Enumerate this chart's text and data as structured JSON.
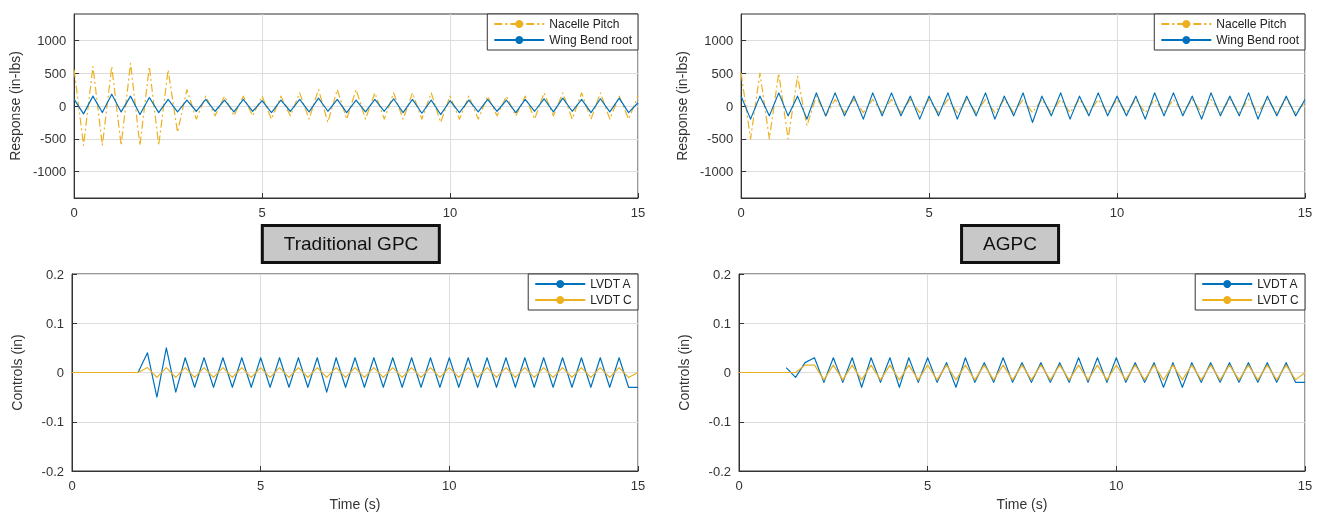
{
  "chart_data": [
    {
      "type": "line",
      "ylabel": "Response (in-lbs)",
      "annotations": [
        "Traditional GPC"
      ],
      "x": [
        0,
        0.25,
        0.5,
        0.75,
        1,
        1.25,
        1.5,
        1.75,
        2,
        2.25,
        2.5,
        2.75,
        3,
        3.25,
        3.5,
        3.75,
        4,
        4.25,
        4.5,
        4.75,
        5,
        5.25,
        5.5,
        5.75,
        6,
        6.25,
        6.5,
        6.75,
        7,
        7.25,
        7.5,
        7.75,
        8,
        8.25,
        8.5,
        8.75,
        9,
        9.25,
        9.5,
        9.75,
        10,
        10.25,
        10.5,
        10.75,
        11,
        11.25,
        11.5,
        11.75,
        12,
        12.25,
        12.5,
        12.75,
        13,
        13.25,
        13.5,
        13.75,
        14,
        14.25,
        14.5,
        14.75,
        15
      ],
      "xlim": [
        0,
        15
      ],
      "xticks": [
        0,
        5,
        10,
        15
      ],
      "ylim": [
        -1400,
        1400
      ],
      "yticks": [
        -1000,
        -500,
        0,
        500,
        1000
      ],
      "grid": true,
      "legend": "top right",
      "marker": "none",
      "series": [
        {
          "name": "Nacelle Pitch",
          "color": "#edb120",
          "line_style": "dashed",
          "values": [
            550,
            -600,
            600,
            -600,
            600,
            -600,
            650,
            -600,
            600,
            -600,
            550,
            -400,
            250,
            -200,
            150,
            -150,
            150,
            -150,
            150,
            -150,
            150,
            -200,
            150,
            -150,
            200,
            -200,
            250,
            -250,
            250,
            -200,
            250,
            -200,
            200,
            -200,
            200,
            -200,
            200,
            -200,
            200,
            -250,
            150,
            -200,
            150,
            -200,
            150,
            -150,
            150,
            -150,
            150,
            -200,
            200,
            -150,
            200,
            -200,
            200,
            -200,
            200,
            -200,
            150,
            -200,
            150
          ]
        },
        {
          "name": "Wing Bend root",
          "color": "#0072bd",
          "line_style": "solid",
          "values": [
            100,
            -120,
            150,
            -100,
            180,
            -90,
            150,
            -130,
            130,
            -100,
            100,
            -90,
            90,
            -80,
            100,
            -80,
            90,
            -90,
            100,
            -80,
            80,
            -100,
            90,
            -80,
            100,
            -90,
            120,
            -80,
            100,
            -100,
            90,
            -90,
            100,
            -80,
            110,
            -100,
            100,
            -110,
            90,
            -130,
            80,
            -100,
            90,
            -90,
            100,
            -80,
            90,
            -100,
            100,
            -80,
            110,
            -90,
            120,
            -80,
            100,
            -100,
            110,
            -90,
            120,
            -100,
            50
          ]
        }
      ]
    },
    {
      "type": "line",
      "ylabel": "Response (in-lbs)",
      "annotations": [
        "AGPC"
      ],
      "x": [
        0,
        0.25,
        0.5,
        0.75,
        1,
        1.25,
        1.5,
        1.75,
        2,
        2.25,
        2.5,
        2.75,
        3,
        3.25,
        3.5,
        3.75,
        4,
        4.25,
        4.5,
        4.75,
        5,
        5.25,
        5.5,
        5.75,
        6,
        6.25,
        6.5,
        6.75,
        7,
        7.25,
        7.5,
        7.75,
        8,
        8.25,
        8.5,
        8.75,
        9,
        9.25,
        9.5,
        9.75,
        10,
        10.25,
        10.5,
        10.75,
        11,
        11.25,
        11.5,
        11.75,
        12,
        12.25,
        12.5,
        12.75,
        13,
        13.25,
        13.5,
        13.75,
        14,
        14.25,
        14.5,
        14.75,
        15
      ],
      "xlim": [
        0,
        15
      ],
      "xticks": [
        0,
        5,
        10,
        15
      ],
      "ylim": [
        -1400,
        1400
      ],
      "yticks": [
        -1000,
        -500,
        0,
        500,
        1000
      ],
      "grid": true,
      "legend": "top right",
      "marker": "none",
      "series": [
        {
          "name": "Nacelle Pitch",
          "color": "#edb120",
          "line_style": "dashed",
          "values": [
            500,
            -500,
            500,
            -500,
            500,
            -500,
            450,
            -300,
            150,
            -150,
            100,
            -100,
            100,
            -100,
            100,
            -100,
            100,
            -100,
            100,
            -100,
            100,
            -100,
            100,
            -100,
            100,
            -100,
            100,
            -100,
            100,
            -100,
            100,
            -100,
            100,
            -100,
            100,
            -100,
            100,
            -100,
            100,
            -100,
            100,
            -100,
            100,
            -100,
            100,
            -100,
            100,
            -100,
            100,
            -100,
            100,
            -100,
            100,
            -100,
            100,
            -100,
            100,
            -100,
            100,
            -100,
            50
          ]
        },
        {
          "name": "Wing Bend root",
          "color": "#0072bd",
          "line_style": "solid",
          "values": [
            150,
            -200,
            150,
            -150,
            200,
            -150,
            150,
            -200,
            200,
            -150,
            200,
            -150,
            150,
            -200,
            200,
            -150,
            200,
            -150,
            150,
            -200,
            150,
            -150,
            200,
            -200,
            150,
            -150,
            200,
            -200,
            150,
            -150,
            200,
            -250,
            150,
            -150,
            200,
            -200,
            150,
            -150,
            200,
            -150,
            150,
            -150,
            150,
            -200,
            200,
            -150,
            200,
            -150,
            150,
            -200,
            200,
            -150,
            150,
            -150,
            200,
            -200,
            150,
            -150,
            150,
            -150,
            100
          ]
        }
      ]
    },
    {
      "type": "line",
      "xlabel": "Time (s)",
      "ylabel": "Controls (in)",
      "x": [
        0,
        0.25,
        0.5,
        0.75,
        1,
        1.25,
        1.5,
        1.75,
        2,
        2.25,
        2.5,
        2.75,
        3,
        3.25,
        3.5,
        3.75,
        4,
        4.25,
        4.5,
        4.75,
        5,
        5.25,
        5.5,
        5.75,
        6,
        6.25,
        6.5,
        6.75,
        7,
        7.25,
        7.5,
        7.75,
        8,
        8.25,
        8.5,
        8.75,
        9,
        9.25,
        9.5,
        9.75,
        10,
        10.25,
        10.5,
        10.75,
        11,
        11.25,
        11.5,
        11.75,
        12,
        12.25,
        12.5,
        12.75,
        13,
        13.25,
        13.5,
        13.75,
        14,
        14.25,
        14.5,
        14.75,
        15
      ],
      "xlim": [
        0,
        15
      ],
      "xticks": [
        0,
        5,
        10,
        15
      ],
      "ylim": [
        -0.2,
        0.2
      ],
      "yticks": [
        -0.2,
        -0.1,
        0,
        0.1,
        0.2
      ],
      "grid": true,
      "legend": "top right",
      "marker": "none",
      "series": [
        {
          "name": "LVDT A",
          "color": "#0072bd",
          "line_style": "solid",
          "values": [
            null,
            null,
            null,
            null,
            null,
            null,
            null,
            0,
            0.04,
            -0.05,
            0.05,
            -0.04,
            0.03,
            -0.03,
            0.03,
            -0.03,
            0.03,
            -0.03,
            0.03,
            -0.03,
            0.03,
            -0.03,
            0.03,
            -0.03,
            0.03,
            -0.03,
            0.03,
            -0.04,
            0.03,
            -0.03,
            0.03,
            -0.03,
            0.03,
            -0.03,
            0.03,
            -0.03,
            0.03,
            -0.03,
            0.03,
            -0.03,
            0.03,
            -0.03,
            0.03,
            -0.03,
            0.03,
            -0.03,
            0.03,
            -0.03,
            0.03,
            -0.03,
            0.03,
            -0.03,
            0.03,
            -0.03,
            0.03,
            -0.03,
            0.03,
            -0.03,
            0.03,
            -0.03,
            -0.03
          ]
        },
        {
          "name": "LVDT C",
          "color": "#edb120",
          "line_style": "solid",
          "values": [
            0,
            0,
            0,
            0,
            0,
            0,
            0,
            0,
            0.01,
            -0.01,
            0.01,
            -0.01,
            0.01,
            -0.01,
            0.01,
            -0.01,
            0.01,
            -0.01,
            0.01,
            -0.01,
            0.01,
            -0.01,
            0.01,
            -0.01,
            0.01,
            -0.01,
            0.01,
            -0.01,
            0.01,
            -0.01,
            0.01,
            -0.01,
            0.01,
            -0.01,
            0.01,
            -0.01,
            0.01,
            -0.01,
            0.01,
            -0.01,
            0.01,
            -0.01,
            0.01,
            -0.01,
            0.01,
            -0.01,
            0.01,
            -0.01,
            0.01,
            -0.01,
            0.01,
            -0.01,
            0.01,
            -0.01,
            0.01,
            -0.01,
            0.01,
            -0.01,
            0.01,
            -0.01,
            0
          ]
        }
      ]
    },
    {
      "type": "line",
      "xlabel": "Time (s)",
      "ylabel": "Controls (in)",
      "x": [
        0,
        0.25,
        0.5,
        0.75,
        1,
        1.25,
        1.5,
        1.75,
        2,
        2.25,
        2.5,
        2.75,
        3,
        3.25,
        3.5,
        3.75,
        4,
        4.25,
        4.5,
        4.75,
        5,
        5.25,
        5.5,
        5.75,
        6,
        6.25,
        6.5,
        6.75,
        7,
        7.25,
        7.5,
        7.75,
        8,
        8.25,
        8.5,
        8.75,
        9,
        9.25,
        9.5,
        9.75,
        10,
        10.25,
        10.5,
        10.75,
        11,
        11.25,
        11.5,
        11.75,
        12,
        12.25,
        12.5,
        12.75,
        13,
        13.25,
        13.5,
        13.75,
        14,
        14.25,
        14.5,
        14.75,
        15
      ],
      "xlim": [
        0,
        15
      ],
      "xticks": [
        0,
        5,
        10,
        15
      ],
      "ylim": [
        -0.2,
        0.2
      ],
      "yticks": [
        -0.2,
        -0.1,
        0,
        0.1,
        0.2
      ],
      "grid": true,
      "legend": "top right",
      "marker": "none",
      "series": [
        {
          "name": "LVDT A",
          "color": "#0072bd",
          "line_style": "solid",
          "values": [
            null,
            null,
            null,
            null,
            null,
            0.01,
            -0.01,
            0.02,
            0.03,
            -0.02,
            0.03,
            -0.02,
            0.03,
            -0.03,
            0.03,
            -0.02,
            0.03,
            -0.03,
            0.03,
            -0.02,
            0.03,
            -0.02,
            0.02,
            -0.03,
            0.03,
            -0.02,
            0.02,
            -0.02,
            0.03,
            -0.02,
            0.02,
            -0.02,
            0.02,
            -0.02,
            0.02,
            -0.02,
            0.03,
            -0.02,
            0.03,
            -0.02,
            0.03,
            -0.02,
            0.02,
            -0.02,
            0.02,
            -0.03,
            0.02,
            -0.03,
            0.02,
            -0.02,
            0.02,
            -0.02,
            0.02,
            -0.02,
            0.02,
            -0.02,
            0.02,
            -0.02,
            0.02,
            -0.02,
            -0.02
          ]
        },
        {
          "name": "LVDT C",
          "color": "#edb120",
          "line_style": "solid",
          "values": [
            0,
            0,
            0,
            0,
            0,
            0,
            0,
            0.015,
            0.015,
            -0.015,
            0.015,
            -0.015,
            0.015,
            -0.015,
            0.015,
            -0.015,
            0.015,
            -0.015,
            0.015,
            -0.015,
            0.015,
            -0.015,
            0.015,
            -0.015,
            0.015,
            -0.015,
            0.015,
            -0.015,
            0.015,
            -0.015,
            0.015,
            -0.015,
            0.015,
            -0.015,
            0.015,
            -0.015,
            0.015,
            -0.015,
            0.015,
            -0.015,
            0.015,
            -0.015,
            0.015,
            -0.015,
            0.015,
            -0.015,
            0.015,
            -0.015,
            0.015,
            -0.015,
            0.015,
            -0.015,
            0.015,
            -0.015,
            0.015,
            -0.015,
            0.015,
            -0.015,
            0.015,
            -0.015,
            0
          ]
        }
      ]
    }
  ]
}
